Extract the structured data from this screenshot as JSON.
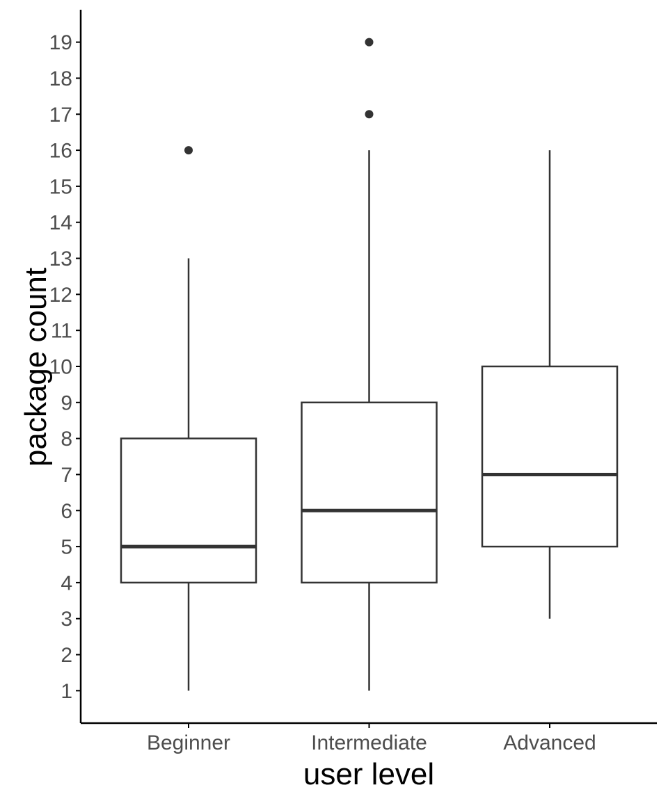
{
  "chart_data": {
    "type": "boxplot",
    "title": "",
    "xlabel": "user level",
    "ylabel": "package count",
    "ylim": [
      0.1,
      19.9
    ],
    "y_ticks": [
      1,
      2,
      3,
      4,
      5,
      6,
      7,
      8,
      9,
      10,
      11,
      12,
      13,
      14,
      15,
      16,
      17,
      18,
      19
    ],
    "grid": false,
    "legend": "none",
    "categories": [
      "Beginner",
      "Intermediate",
      "Advanced"
    ],
    "boxes": [
      {
        "category": "Beginner",
        "whisker_low": 1,
        "q1": 4,
        "median": 5,
        "q3": 8,
        "whisker_high": 13,
        "outliers": [
          16
        ]
      },
      {
        "category": "Intermediate",
        "whisker_low": 1,
        "q1": 4,
        "median": 6,
        "q3": 9,
        "whisker_high": 16,
        "outliers": [
          17,
          19
        ]
      },
      {
        "category": "Advanced",
        "whisker_low": 3,
        "q1": 5,
        "median": 7,
        "q3": 10,
        "whisker_high": 16,
        "outliers": []
      }
    ],
    "colors": {
      "box_stroke": "#333333",
      "axis": "#000000",
      "tick_text": "#4d4d4d",
      "title_text": "#000000"
    }
  }
}
